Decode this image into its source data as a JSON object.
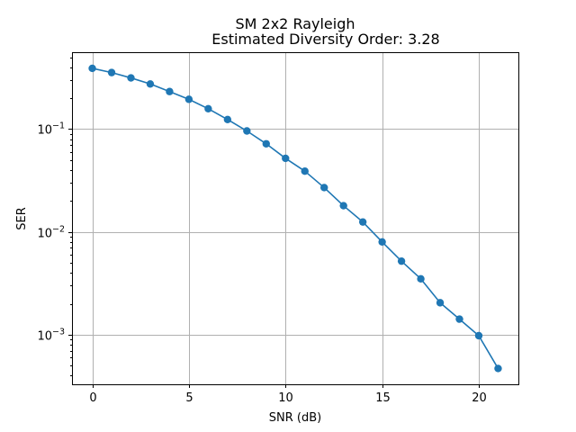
{
  "chart_data": {
    "type": "line",
    "title": "SM 2x2 Rayleigh",
    "subtitle": "Estimated Diversity Order: 3.28",
    "xlabel": "SNR (dB)",
    "ylabel": "SER",
    "xlim": [
      -1.05,
      22.05
    ],
    "ylim": [
      0.00033,
      0.56
    ],
    "y_scale": "log",
    "grid": true,
    "x_ticks": [
      0,
      5,
      10,
      15,
      20
    ],
    "y_ticks": [
      {
        "value": 0.001,
        "base": "10",
        "exponent": "−3"
      },
      {
        "value": 0.01,
        "base": "10",
        "exponent": "−2"
      },
      {
        "value": 0.1,
        "base": "10",
        "exponent": "−1"
      }
    ],
    "series": [
      {
        "color": "#1f77b4",
        "marker": "circle",
        "x": [
          0,
          1,
          2,
          3,
          4,
          5,
          6,
          7,
          8,
          9,
          10,
          11,
          12,
          13,
          14,
          15,
          16,
          17,
          18,
          19,
          20,
          21
        ],
        "y": [
          0.39,
          0.355,
          0.315,
          0.275,
          0.232,
          0.195,
          0.158,
          0.124,
          0.096,
          0.072,
          0.052,
          0.039,
          0.027,
          0.018,
          0.0125,
          0.008,
          0.0052,
          0.0035,
          0.00205,
          0.00142,
          0.00098,
          0.00047
        ]
      }
    ]
  }
}
